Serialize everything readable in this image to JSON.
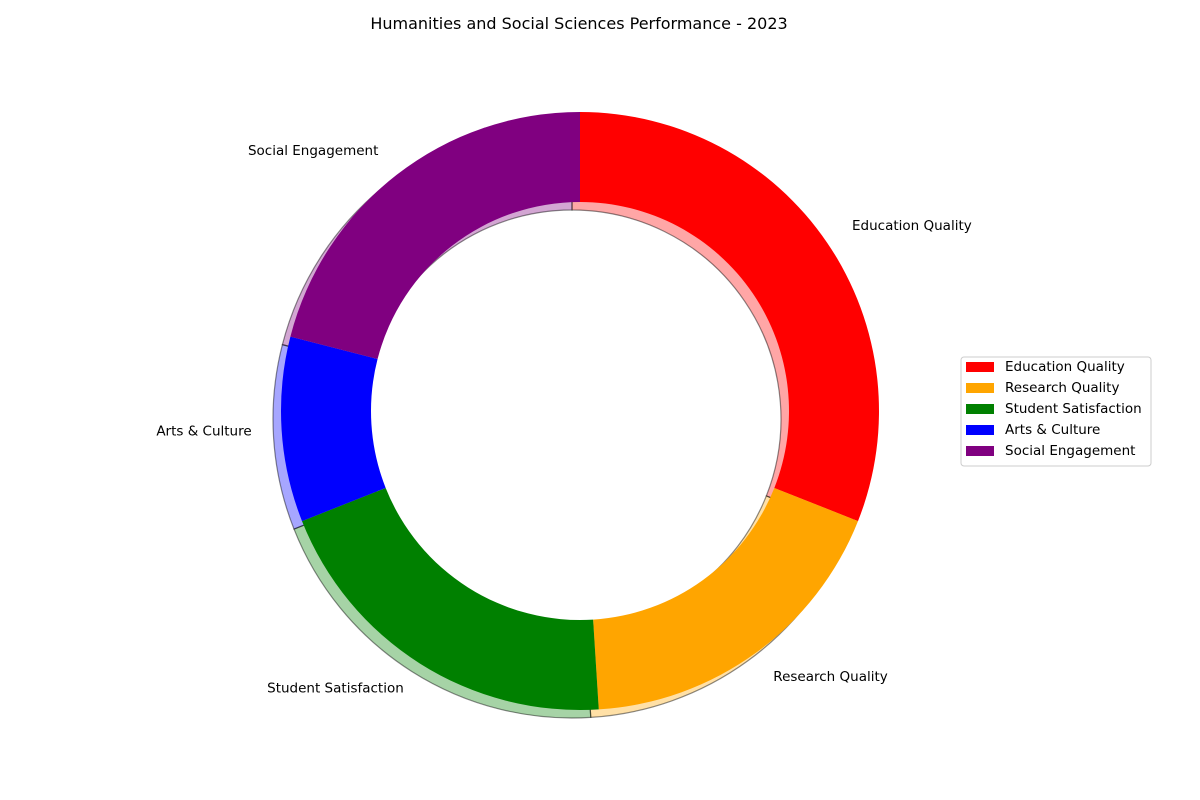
{
  "chart_data": {
    "type": "pie",
    "subtype": "donut",
    "title": "Humanities and Social Sciences Performance - 2023",
    "categories": [
      "Education Quality",
      "Research Quality",
      "Student Satisfaction",
      "Arts & Culture",
      "Social Engagement"
    ],
    "values": [
      31,
      18,
      20,
      10,
      21
    ],
    "colors": [
      "#ff0000",
      "#ffa500",
      "#008000",
      "#0000ff",
      "#800080"
    ],
    "start_angle_deg": 90,
    "direction": "clockwise",
    "shadow": true,
    "legend": {
      "placement": "center-right",
      "entries": [
        "Education Quality",
        "Research Quality",
        "Student Satisfaction",
        "Arts & Culture",
        "Social Engagement"
      ]
    }
  }
}
